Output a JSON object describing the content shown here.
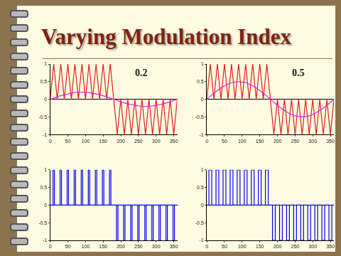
{
  "title": "Varying Modulation Index",
  "chart_data": [
    {
      "type": "line",
      "annotations": [
        "0.2"
      ],
      "x": [
        0,
        10,
        20,
        30,
        40,
        50,
        60,
        70,
        80,
        90,
        100,
        110,
        120,
        130,
        140,
        150,
        160,
        170,
        180,
        190,
        200,
        210,
        220,
        230,
        240,
        250,
        260,
        270,
        280,
        290,
        300,
        310,
        320,
        330,
        340,
        350,
        360
      ],
      "series": [
        {
          "color": "#e0201a",
          "line_style": "solid",
          "values": [
            0,
            1,
            0,
            1,
            0,
            1,
            0,
            1,
            0,
            1,
            0,
            1,
            0,
            1,
            0,
            1,
            0,
            1,
            0,
            -1,
            0,
            -1,
            0,
            -1,
            0,
            -1,
            0,
            -1,
            0,
            -1,
            0,
            -1,
            0,
            -1,
            0,
            -1,
            0
          ]
        },
        {
          "color": "#e020e0",
          "line_style": "smooth",
          "values": [
            0,
            0.03,
            0.07,
            0.1,
            0.13,
            0.15,
            0.17,
            0.19,
            0.2,
            0.2,
            0.2,
            0.19,
            0.17,
            0.15,
            0.13,
            0.1,
            0.07,
            0.03,
            0,
            -0.03,
            -0.07,
            -0.1,
            -0.13,
            -0.15,
            -0.17,
            -0.19,
            -0.2,
            -0.2,
            -0.2,
            -0.19,
            -0.17,
            -0.15,
            -0.13,
            -0.1,
            -0.07,
            -0.03,
            0
          ]
        }
      ],
      "xlim": [
        0,
        360
      ],
      "xticks": [
        0,
        50,
        100,
        150,
        200,
        250,
        300,
        350
      ],
      "ylim": [
        -1,
        1
      ],
      "yticks": [
        -1,
        -0.5,
        0,
        0.5,
        1
      ],
      "grid": false
    },
    {
      "type": "line",
      "annotations": [
        "0.5"
      ],
      "x": [
        0,
        10,
        20,
        30,
        40,
        50,
        60,
        70,
        80,
        90,
        100,
        110,
        120,
        130,
        140,
        150,
        160,
        170,
        180,
        190,
        200,
        210,
        220,
        230,
        240,
        250,
        260,
        270,
        280,
        290,
        300,
        310,
        320,
        330,
        340,
        350,
        360
      ],
      "series": [
        {
          "color": "#e0201a",
          "line_style": "solid",
          "values": [
            0,
            1,
            0,
            1,
            0,
            1,
            0,
            1,
            0,
            1,
            0,
            1,
            0,
            1,
            0,
            1,
            0,
            1,
            0,
            -1,
            0,
            -1,
            0,
            -1,
            0,
            -1,
            0,
            -1,
            0,
            -1,
            0,
            -1,
            0,
            -1,
            0,
            -1,
            0
          ]
        },
        {
          "color": "#e020e0",
          "line_style": "smooth",
          "values": [
            0,
            0.09,
            0.17,
            0.25,
            0.32,
            0.38,
            0.43,
            0.47,
            0.49,
            0.5,
            0.49,
            0.47,
            0.43,
            0.38,
            0.32,
            0.25,
            0.17,
            0.09,
            0,
            -0.09,
            -0.17,
            -0.25,
            -0.32,
            -0.38,
            -0.43,
            -0.47,
            -0.49,
            -0.5,
            -0.49,
            -0.47,
            -0.43,
            -0.38,
            -0.32,
            -0.25,
            -0.17,
            -0.09,
            0
          ]
        }
      ],
      "xlim": [
        0,
        360
      ],
      "xticks": [
        0,
        50,
        100,
        150,
        200,
        250,
        300,
        350
      ],
      "ylim": [
        -1,
        1
      ],
      "yticks": [
        -1,
        -0.5,
        0,
        0.5,
        1
      ],
      "grid": false
    },
    {
      "type": "line",
      "annotations": [],
      "x": [
        0,
        8,
        12,
        28,
        32,
        48,
        52,
        68,
        72,
        88,
        92,
        108,
        112,
        128,
        132,
        148,
        152,
        168,
        172,
        188,
        192,
        208,
        212,
        228,
        232,
        248,
        252,
        268,
        272,
        288,
        292,
        308,
        312,
        328,
        332,
        348,
        352,
        360
      ],
      "series": [
        {
          "color": "#0000ff",
          "line_style": "step",
          "values": [
            0,
            1,
            0,
            1,
            0,
            1,
            0,
            1,
            0,
            1,
            0,
            1,
            0,
            1,
            0,
            1,
            0,
            1,
            0,
            -1,
            0,
            -1,
            0,
            -1,
            0,
            -1,
            0,
            -1,
            0,
            -1,
            0,
            -1,
            0,
            -1,
            0,
            -1,
            0,
            0
          ]
        }
      ],
      "xlim": [
        0,
        360
      ],
      "xticks": [
        0,
        50,
        100,
        150,
        200,
        250,
        300,
        350
      ],
      "ylim": [
        -1,
        1
      ],
      "yticks": [
        -1,
        -0.5,
        0,
        0.5,
        1
      ],
      "grid": false
    },
    {
      "type": "line",
      "annotations": [],
      "x": [
        0,
        6,
        14,
        26,
        34,
        46,
        54,
        66,
        74,
        86,
        94,
        106,
        114,
        126,
        134,
        146,
        154,
        166,
        174,
        186,
        194,
        206,
        214,
        226,
        234,
        246,
        254,
        266,
        274,
        286,
        294,
        306,
        314,
        326,
        334,
        346,
        354,
        360
      ],
      "series": [
        {
          "color": "#0000ff",
          "line_style": "step",
          "values": [
            0,
            1,
            0,
            1,
            0,
            1,
            0,
            1,
            0,
            1,
            0,
            1,
            0,
            1,
            0,
            1,
            0,
            1,
            0,
            -1,
            0,
            -1,
            0,
            -1,
            0,
            -1,
            0,
            -1,
            0,
            -1,
            0,
            -1,
            0,
            -1,
            0,
            -1,
            0,
            0
          ]
        }
      ],
      "xlim": [
        0,
        360
      ],
      "xticks": [
        0,
        50,
        100,
        150,
        200,
        250,
        300,
        350
      ],
      "ylim": [
        -1,
        1
      ],
      "yticks": [
        -1,
        -0.5,
        0,
        0.5,
        1
      ],
      "grid": false
    }
  ]
}
